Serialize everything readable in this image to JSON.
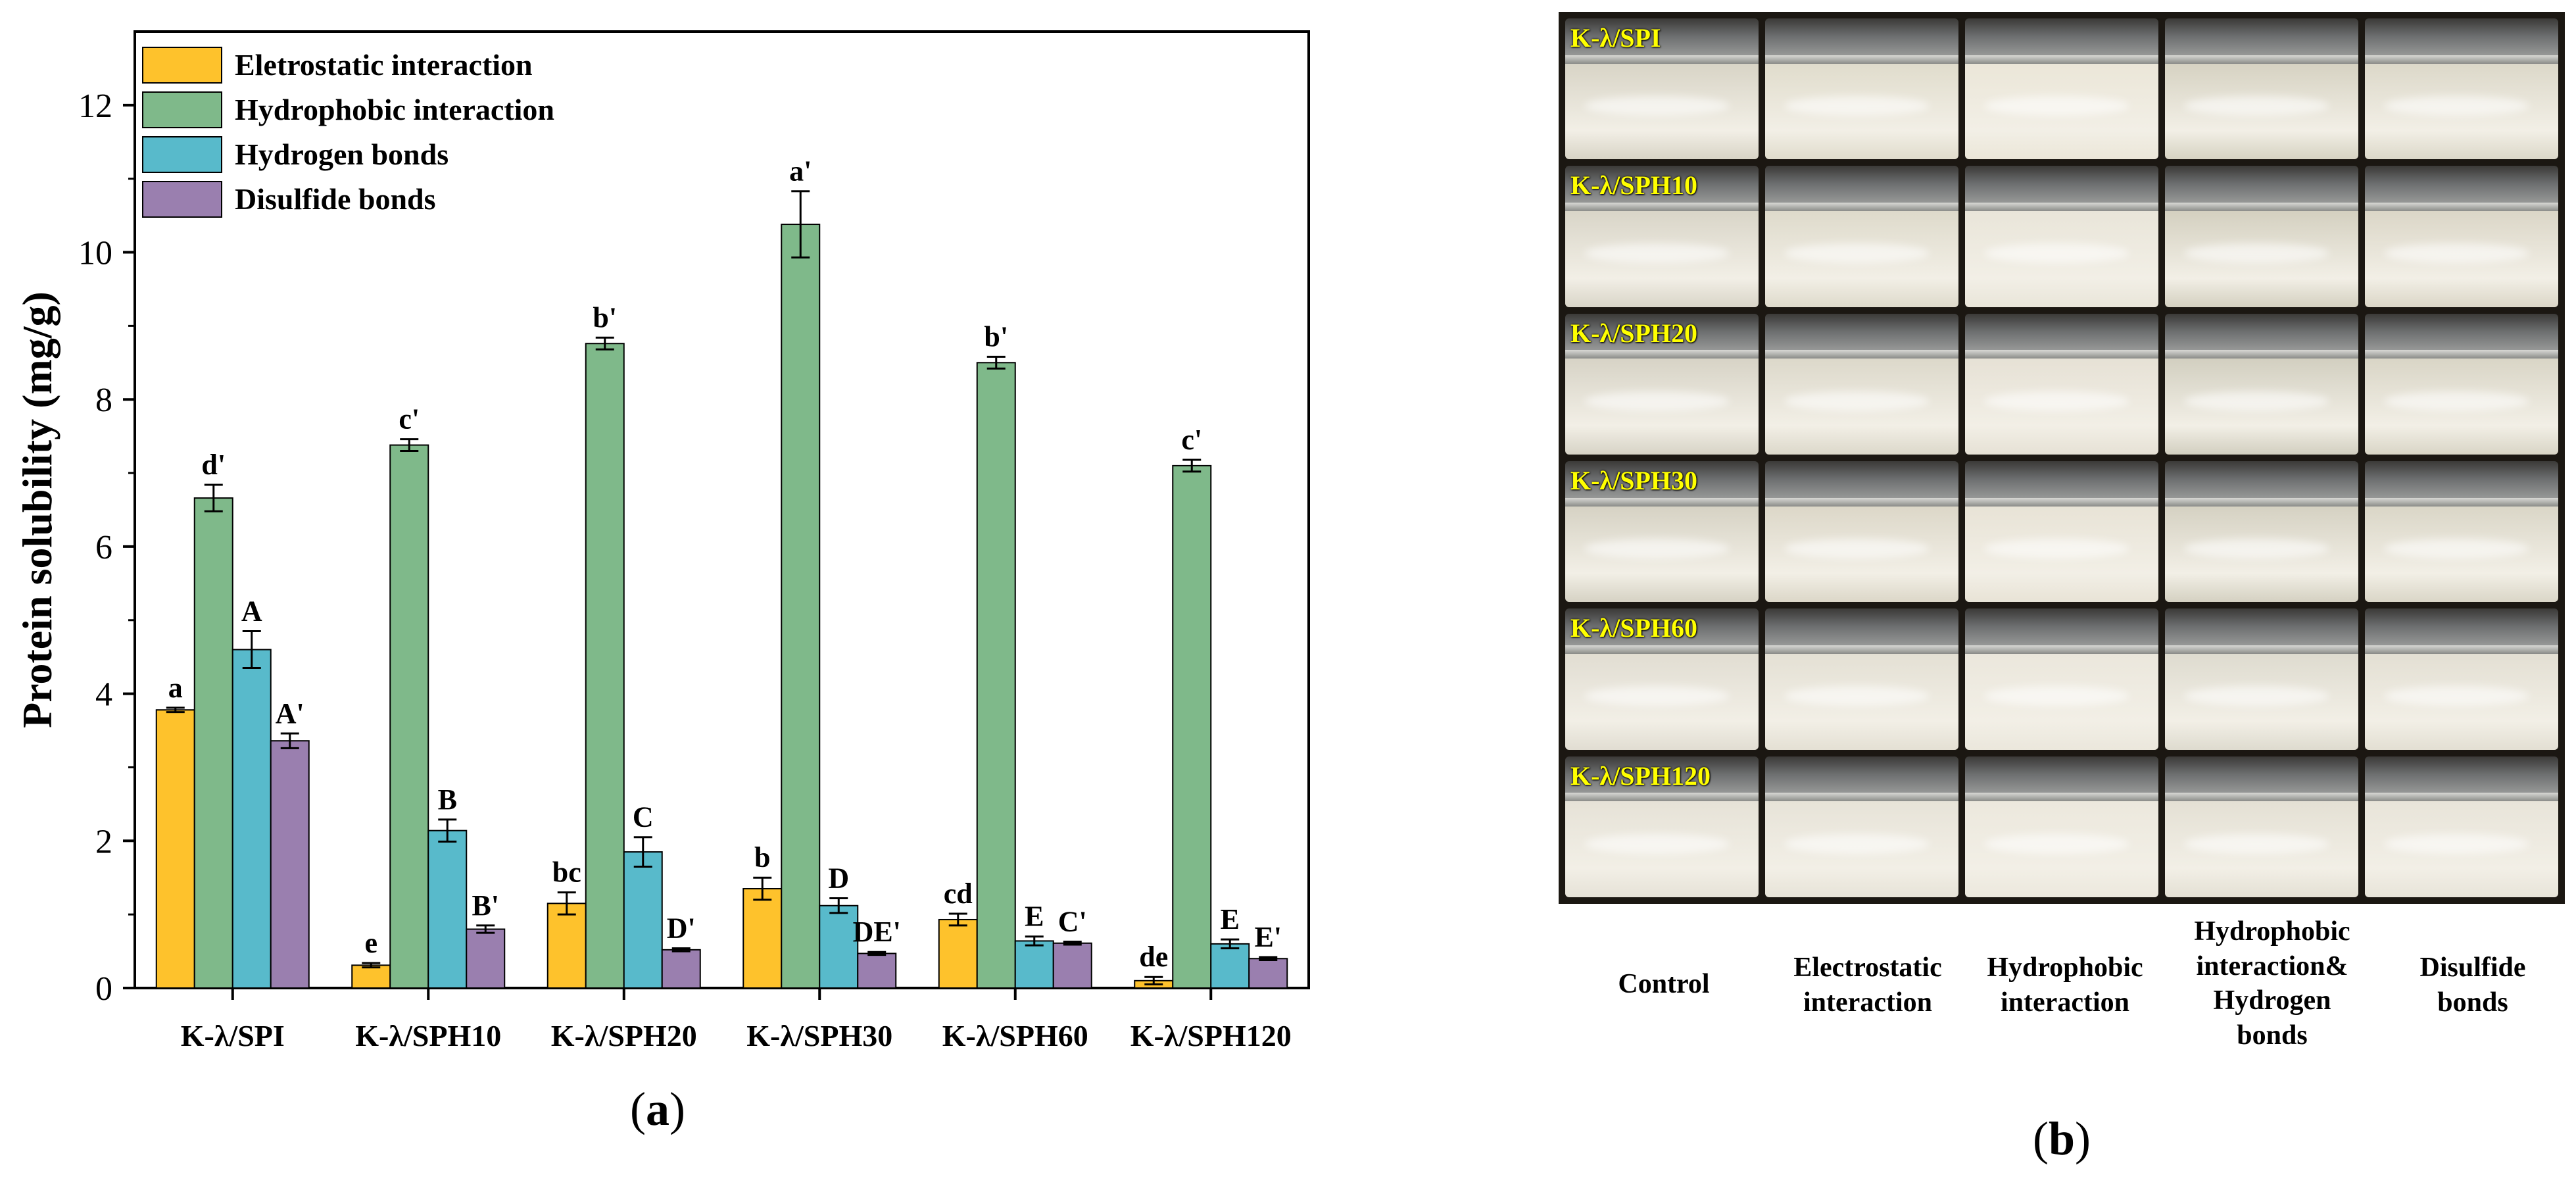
{
  "panel_a": {
    "label_open": "(",
    "label_letter": "a",
    "label_close": ")"
  },
  "chart_data": {
    "type": "bar",
    "ylabel": "Protein solubility (mg/g)",
    "xlabel": "",
    "ylim": [
      0,
      13
    ],
    "yticks": [
      0,
      2,
      4,
      6,
      8,
      10,
      12
    ],
    "legend_position": "top-left",
    "categories": [
      "K-λ/SPI",
      "K-λ/SPH10",
      "K-λ/SPH20",
      "K-λ/SPH30",
      "K-λ/SPH60",
      "K-λ/SPH120"
    ],
    "series": [
      {
        "name": "Eletrostatic interaction",
        "color": "#FEC22C",
        "values": [
          3.78,
          0.31,
          1.15,
          1.35,
          0.93,
          0.1
        ],
        "errors": [
          0.03,
          0.03,
          0.15,
          0.15,
          0.08,
          0.05
        ],
        "labels": [
          "a",
          "e",
          "bc",
          "b",
          "cd",
          "de"
        ]
      },
      {
        "name": "Hydrophobic interaction",
        "color": "#7FB98A",
        "values": [
          6.66,
          7.38,
          8.76,
          10.38,
          8.5,
          7.1
        ],
        "errors": [
          0.18,
          0.08,
          0.08,
          0.45,
          0.08,
          0.08
        ],
        "labels": [
          "d'",
          "c'",
          "b'",
          "a'",
          "b'",
          "c'"
        ]
      },
      {
        "name": "Hydrogen bonds",
        "color": "#58BACB",
        "values": [
          4.6,
          2.14,
          1.85,
          1.12,
          0.64,
          0.6
        ],
        "errors": [
          0.25,
          0.15,
          0.2,
          0.1,
          0.06,
          0.06
        ],
        "labels": [
          "A",
          "B",
          "C",
          "D",
          "E",
          "E"
        ]
      },
      {
        "name": "Disulfide bonds",
        "color": "#9A7FAF",
        "values": [
          3.36,
          0.8,
          0.52,
          0.47,
          0.61,
          0.4
        ],
        "errors": [
          0.1,
          0.05,
          0.02,
          0.02,
          0.02,
          0.02
        ],
        "labels": [
          "A'",
          "B'",
          "D'",
          "DE'",
          "C'",
          "E'"
        ]
      }
    ]
  },
  "panel_b": {
    "label_open": "(",
    "label_letter": "b",
    "label_close": ")",
    "row_labels": [
      "K-λ/SPI",
      "K-λ/SPH10",
      "K-λ/SPH20",
      "K-λ/SPH30",
      "K-λ/SPH60",
      "K-λ/SPH120"
    ],
    "column_labels": [
      [
        "Control"
      ],
      [
        "Electrostatic",
        "interaction"
      ],
      [
        "Hydrophobic",
        "interaction"
      ],
      [
        "Hydrophobic",
        "interaction&",
        "Hydrogen",
        "bonds"
      ],
      [
        "Disulfide",
        "bonds"
      ]
    ],
    "liquid_colors": [
      [
        "#d8d4c6",
        "#e0dccc",
        "#ebe6d8",
        "#d6d2c2",
        "#dcd8c9"
      ],
      [
        "#d9d5c8",
        "#dedacb",
        "#e9e5d9",
        "#d4d0c0",
        "#dbd6c7"
      ],
      [
        "#d7d3c6",
        "#dcd8ca",
        "#e6e1d5",
        "#d2cfc0",
        "#d9d5c6"
      ],
      [
        "#d6d2c4",
        "#dcd7c8",
        "#e8e3d6",
        "#d5d1c2",
        "#dad6c7"
      ],
      [
        "#e1ddd2",
        "#e4e0d4",
        "#ebe7dc",
        "#dedbcf",
        "#e3dfd3"
      ],
      [
        "#e6e2d7",
        "#e7e3d8",
        "#ece8dd",
        "#e4e0d4",
        "#e8e4d9"
      ]
    ]
  }
}
